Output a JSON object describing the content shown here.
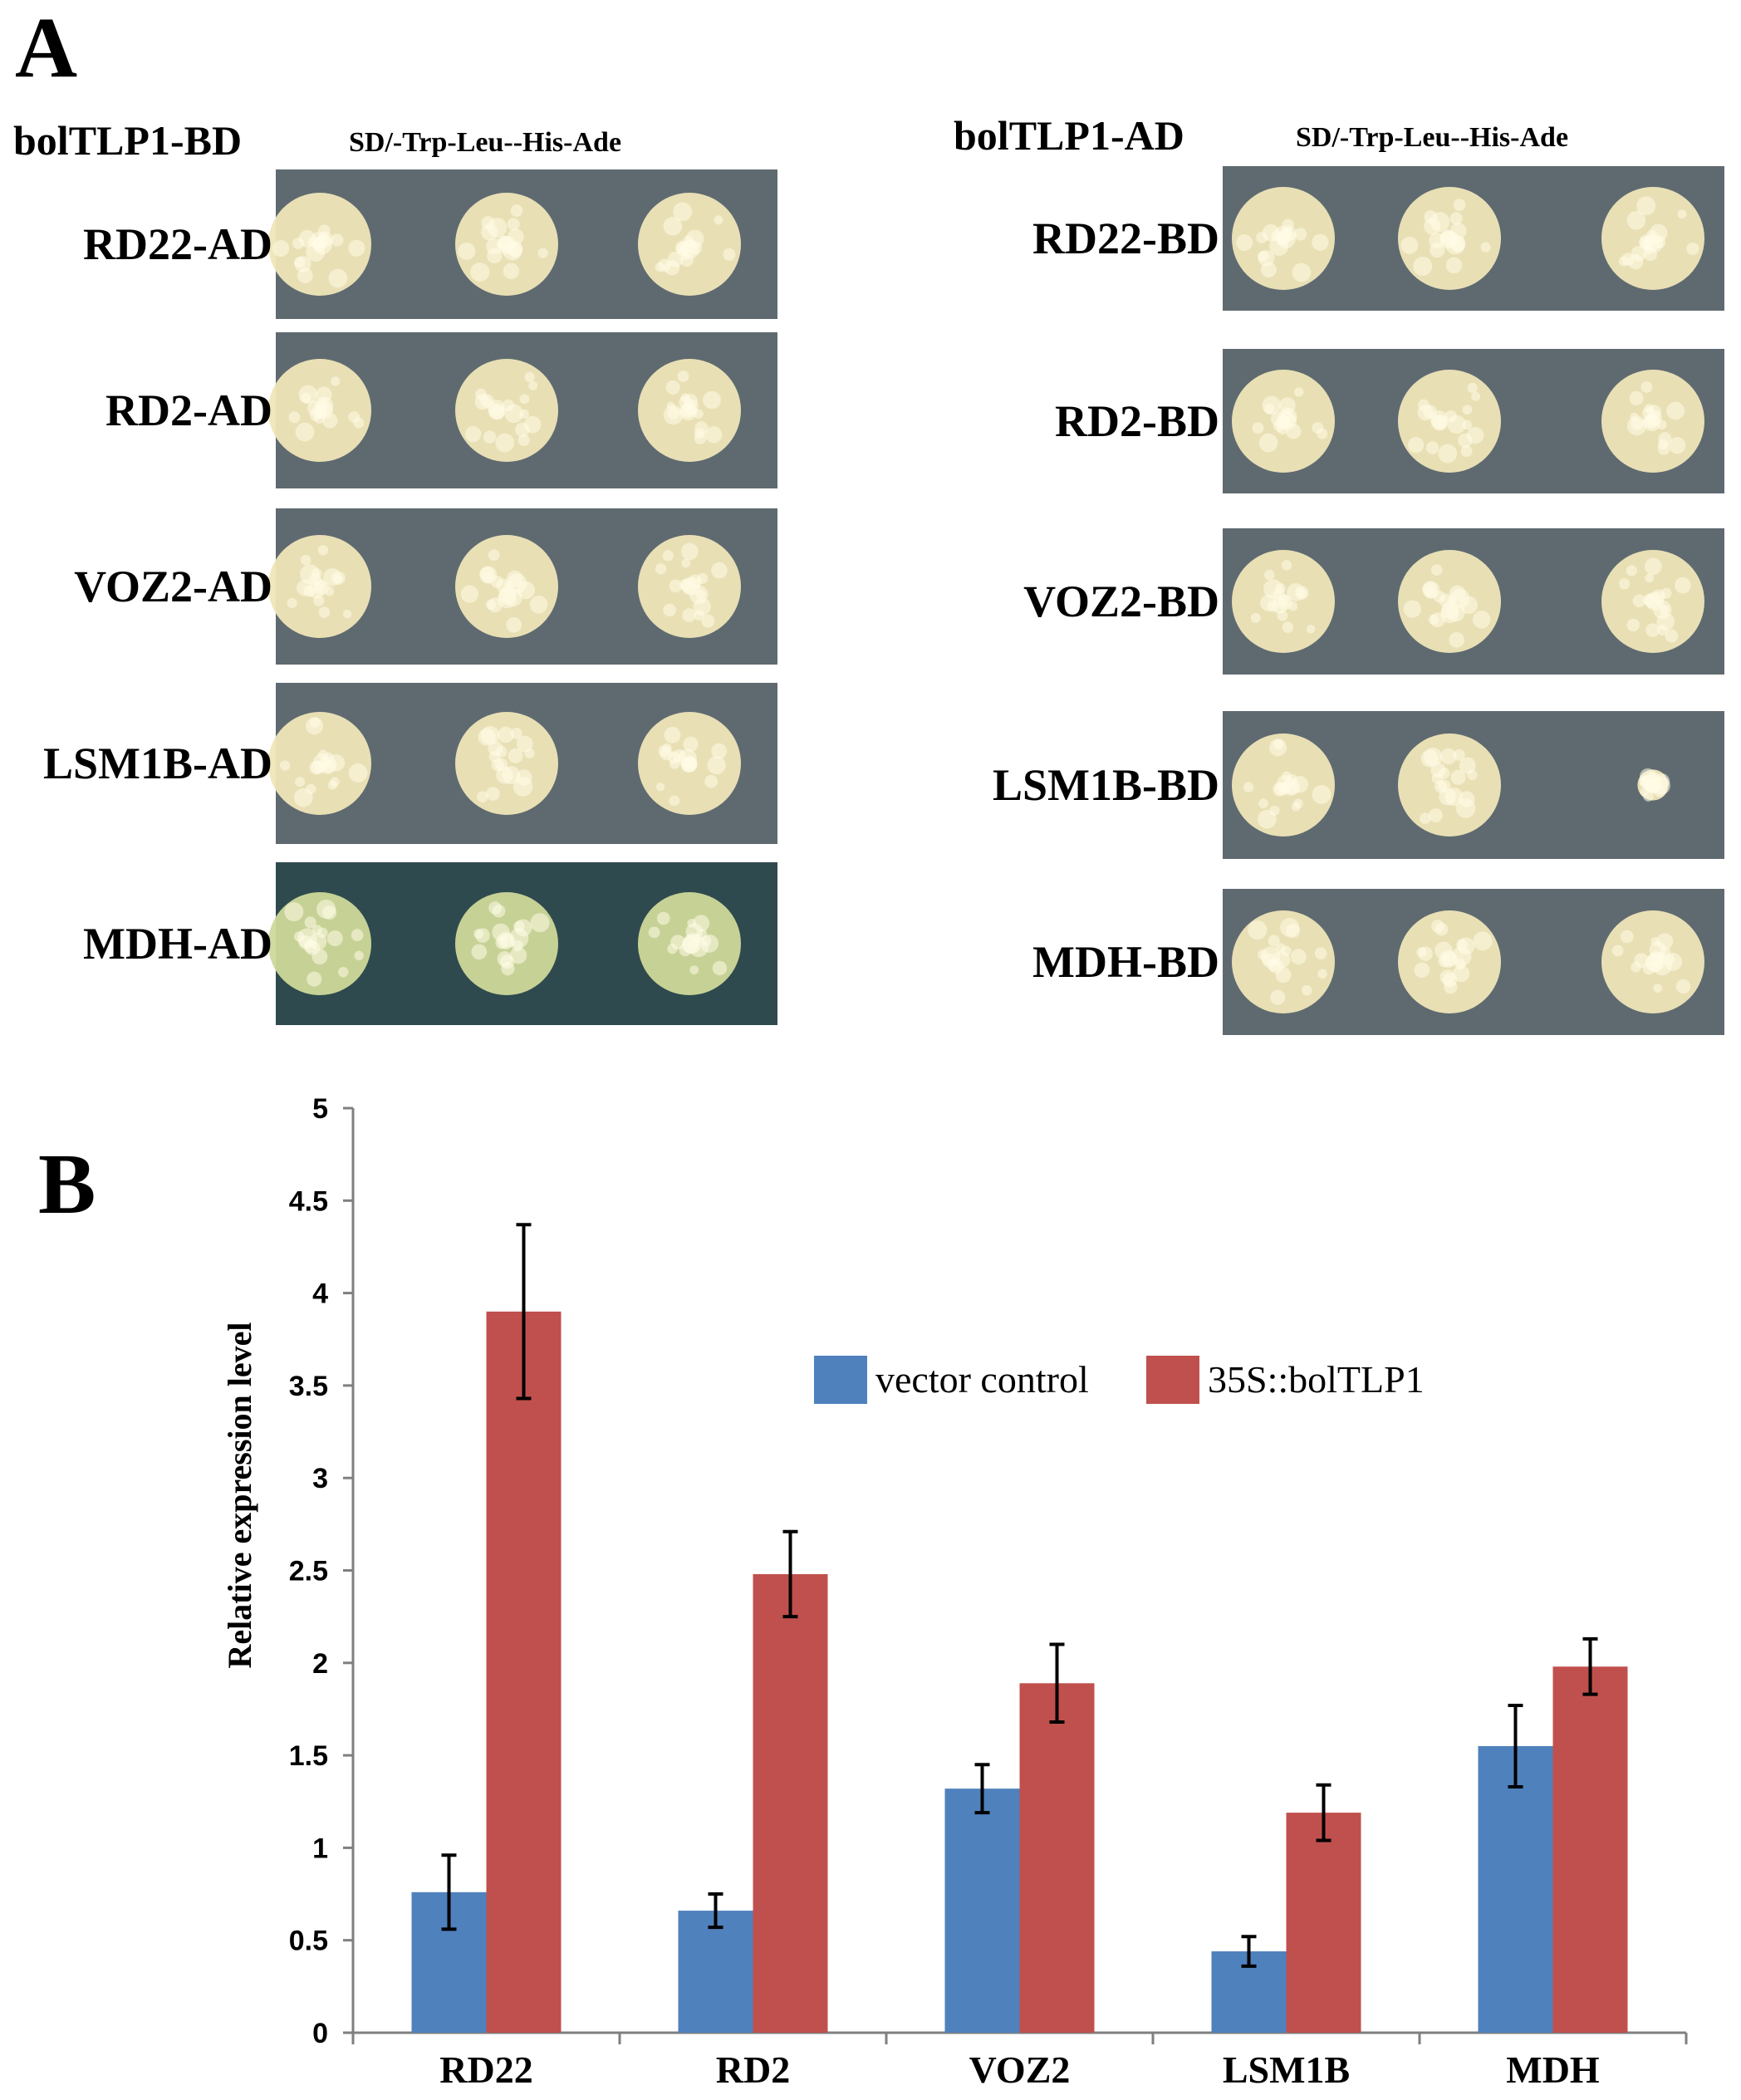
{
  "panel_a": {
    "label": "A",
    "left": {
      "header": "bolTLP1-BD",
      "medium": "SD/-Trp-Leu--His-Ade",
      "rows": [
        "RD22-AD",
        "RD2-AD",
        "VOZ2-AD",
        "LSM1B-AD",
        "MDH-AD"
      ]
    },
    "right": {
      "header": "bolTLP1-AD",
      "medium": "SD/-Trp-Leu--His-Ade",
      "rows": [
        "RD22-BD",
        "RD2-BD",
        "VOZ2-BD",
        "LSM1B-BD",
        "MDH-BD"
      ]
    },
    "colors": {
      "plate_gray": "#5f6a70",
      "plate_green": "#2f4a4e",
      "colony_cream": "#efe6b8",
      "colony_green": "#cfd89a"
    }
  },
  "panel_b": {
    "label": "B"
  },
  "chart_data": {
    "type": "bar",
    "categories": [
      "RD22",
      "RD2",
      "VOZ2",
      "LSM1B",
      "MDH"
    ],
    "series": [
      {
        "name": "vector control",
        "color": "#4f81bd",
        "values": [
          0.76,
          0.66,
          1.32,
          0.44,
          1.55
        ],
        "errors": [
          0.2,
          0.09,
          0.13,
          0.08,
          0.22
        ]
      },
      {
        "name": "35S::bolTLP1",
        "color": "#c0504d",
        "values": [
          3.9,
          2.48,
          1.89,
          1.19,
          1.98
        ],
        "errors": [
          0.47,
          0.23,
          0.21,
          0.15,
          0.15
        ]
      }
    ],
    "ylabel": "Relative expression level",
    "ylim": [
      0,
      5
    ],
    "yticks": [
      "0",
      "0.5",
      "1",
      "1.5",
      "2",
      "2.5",
      "3",
      "3.5",
      "4",
      "4.5",
      "5"
    ],
    "legend_position": "top-right",
    "grid": false
  }
}
